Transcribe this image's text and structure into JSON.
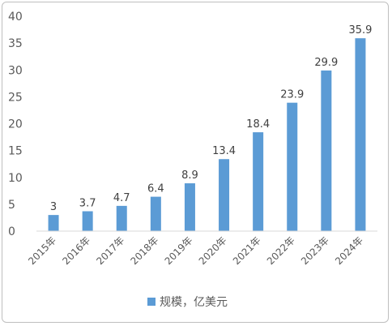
{
  "chart_data": {
    "type": "bar",
    "categories": [
      "2015年",
      "2016年",
      "2017年",
      "2018年",
      "2019年",
      "2020年",
      "2021年",
      "2022年",
      "2023年",
      "2024年"
    ],
    "series": [
      {
        "name": "规模，亿美元",
        "values": [
          3,
          3.7,
          4.7,
          6.4,
          8.9,
          13.4,
          18.4,
          23.9,
          29.9,
          35.9
        ]
      }
    ],
    "data_labels": [
      "3",
      "3.7",
      "4.7",
      "6.4",
      "8.9",
      "13.4",
      "18.4",
      "23.9",
      "29.9",
      "35.9"
    ],
    "yticks": [
      "0",
      "5",
      "10",
      "15",
      "20",
      "25",
      "30",
      "35",
      "40"
    ],
    "ylim": [
      0,
      40
    ],
    "grid": false,
    "legend_position": "bottom",
    "colors": {
      "bar": "#5b9bd5",
      "axis": "#d9d9d9",
      "text": "#595959"
    },
    "title": "",
    "xlabel": "",
    "ylabel": ""
  }
}
